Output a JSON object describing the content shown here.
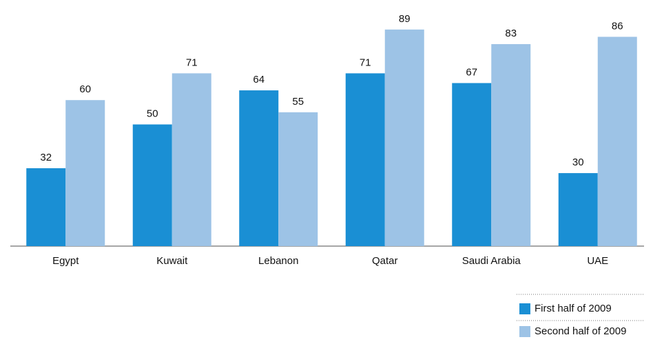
{
  "chart_data": {
    "type": "bar",
    "categories": [
      "Egypt",
      "Kuwait",
      "Lebanon",
      "Qatar",
      "Saudi Arabia",
      "UAE"
    ],
    "series": [
      {
        "name": "First half of 2009",
        "color": "#1a8fd4",
        "values": [
          32,
          50,
          64,
          71,
          67,
          30
        ]
      },
      {
        "name": "Second half of 2009",
        "color": "#9dc3e6",
        "values": [
          60,
          71,
          55,
          89,
          83,
          86
        ]
      }
    ],
    "ylim": [
      0,
      100
    ],
    "legend": "bottom-right"
  }
}
